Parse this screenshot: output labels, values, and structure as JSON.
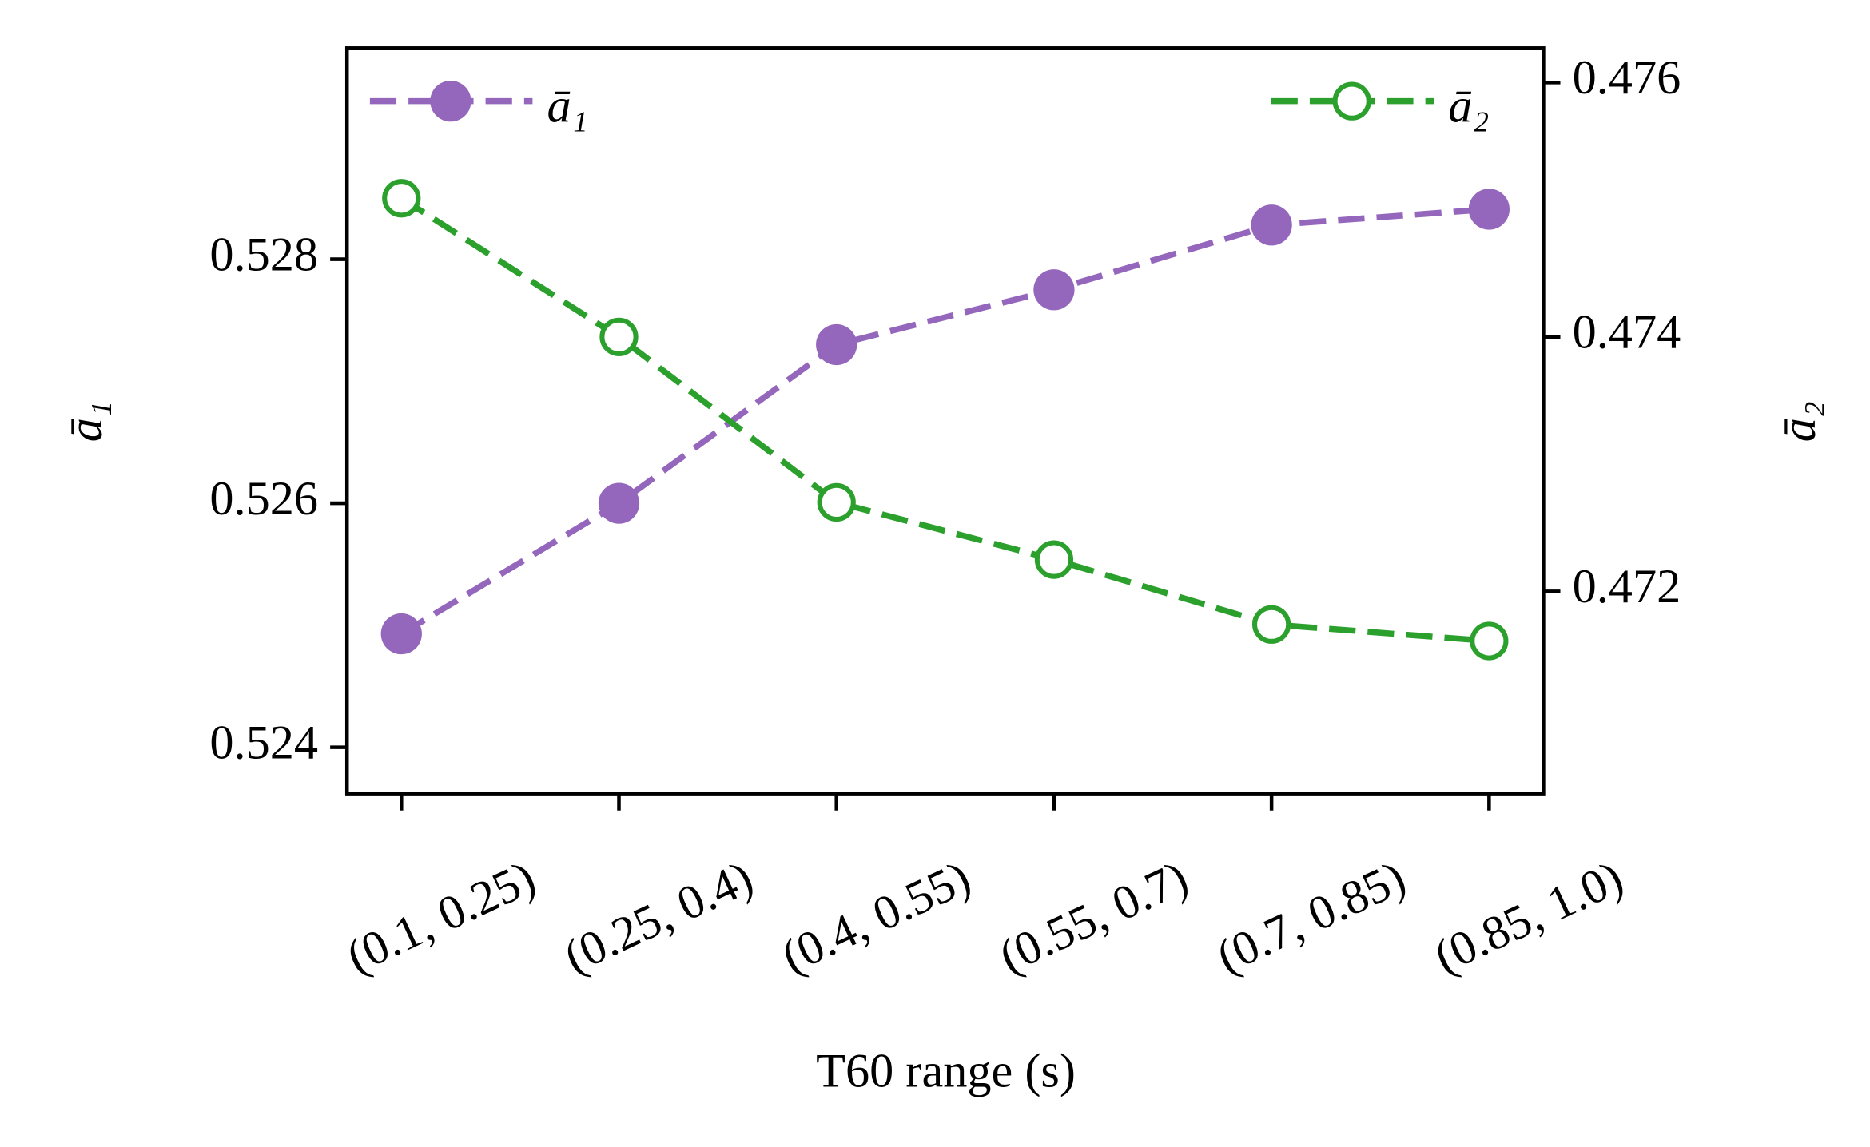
{
  "chart_data": {
    "type": "line",
    "x_label": "T60 range (s)",
    "y_label": "ā₁",
    "y2_label": "ā₂",
    "categories": [
      "(0.1, 0.25)",
      "(0.25, 0.4)",
      "(0.4, 0.55)",
      "(0.55, 0.7)",
      "(0.7, 0.85)",
      "(0.85, 1.0)"
    ],
    "ylim": [
      0.52362,
      0.52973
    ],
    "yticks": [
      0.524,
      0.526,
      0.528
    ],
    "y2lim": [
      0.47041,
      0.47627
    ],
    "y2ticks": [
      0.472,
      0.474,
      0.476
    ],
    "series": [
      {
        "name": "ā₁",
        "color": "#9467bd",
        "marker_filled": true,
        "legend": "upper left",
        "values": [
          0.52493,
          0.526,
          0.5273,
          0.52775,
          0.52828,
          0.52841
        ]
      },
      {
        "name": "ā₂",
        "color": "#2ca02c",
        "marker_filled": false,
        "legend": "upper right",
        "axis": "y2",
        "values": [
          0.47509,
          0.474,
          0.4727,
          0.47225,
          0.47174,
          0.47161
        ]
      }
    ]
  }
}
